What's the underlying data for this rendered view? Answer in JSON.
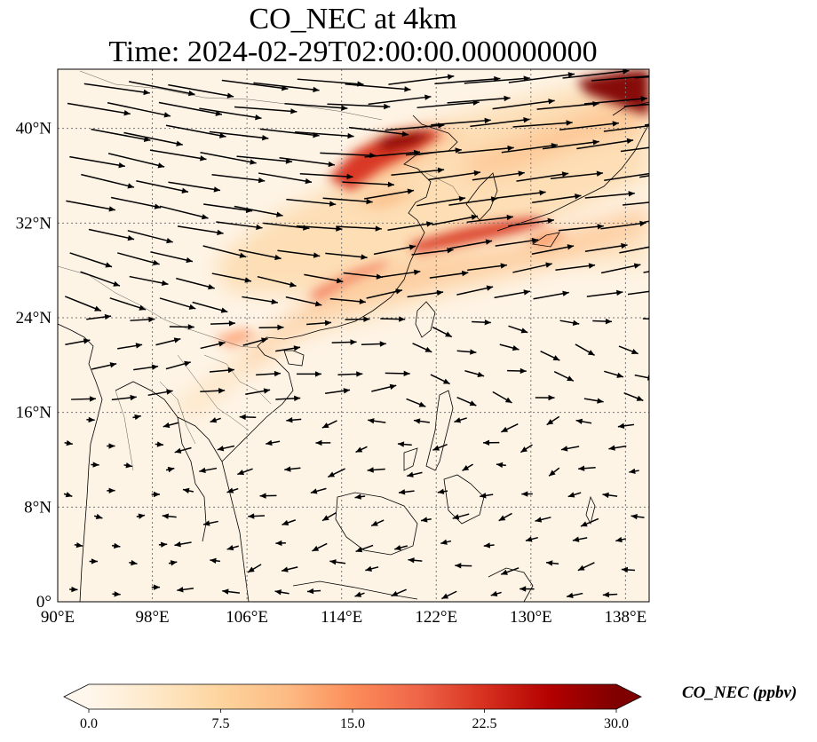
{
  "title": {
    "line1": "CO_NEC at 4km",
    "line2": "Time: 2024-02-29T02:00:00.000000000"
  },
  "map": {
    "projection": "PlateCarree",
    "extent": {
      "lon": [
        90,
        140
      ],
      "lat": [
        0,
        45
      ]
    },
    "gridlines": true,
    "x_ticks": [
      {
        "value": 90,
        "label": "90°E"
      },
      {
        "value": 98,
        "label": "98°E"
      },
      {
        "value": 106,
        "label": "106°E"
      },
      {
        "value": 114,
        "label": "114°E"
      },
      {
        "value": 122,
        "label": "122°E"
      },
      {
        "value": 130,
        "label": "130°E"
      },
      {
        "value": 138,
        "label": "138°E"
      }
    ],
    "y_ticks": [
      {
        "value": 0,
        "label": "0°"
      },
      {
        "value": 8,
        "label": "8°N"
      },
      {
        "value": 16,
        "label": "16°N"
      },
      {
        "value": 24,
        "label": "24°N"
      },
      {
        "value": 32,
        "label": "32°N"
      },
      {
        "value": 40,
        "label": "40°N"
      }
    ],
    "field": "CO_NEC",
    "wind_vectors": true,
    "coastlines": true,
    "borders": true
  },
  "colorbar": {
    "label": "CO_NEC (ppbv)",
    "colormap": "OrRd",
    "min": 0,
    "max": 30,
    "extend": "both",
    "ticks": [
      {
        "value": 0,
        "label": "0.0"
      },
      {
        "value": 7.5,
        "label": "7.5"
      },
      {
        "value": 15,
        "label": "15.0"
      },
      {
        "value": 22.5,
        "label": "22.5"
      },
      {
        "value": 30,
        "label": "30.0"
      }
    ],
    "stops": [
      "#fff7ec",
      "#fee8c8",
      "#fdd49e",
      "#fdbb84",
      "#fc8d59",
      "#ef6548",
      "#d7301f",
      "#b30000",
      "#7f0000"
    ]
  }
}
